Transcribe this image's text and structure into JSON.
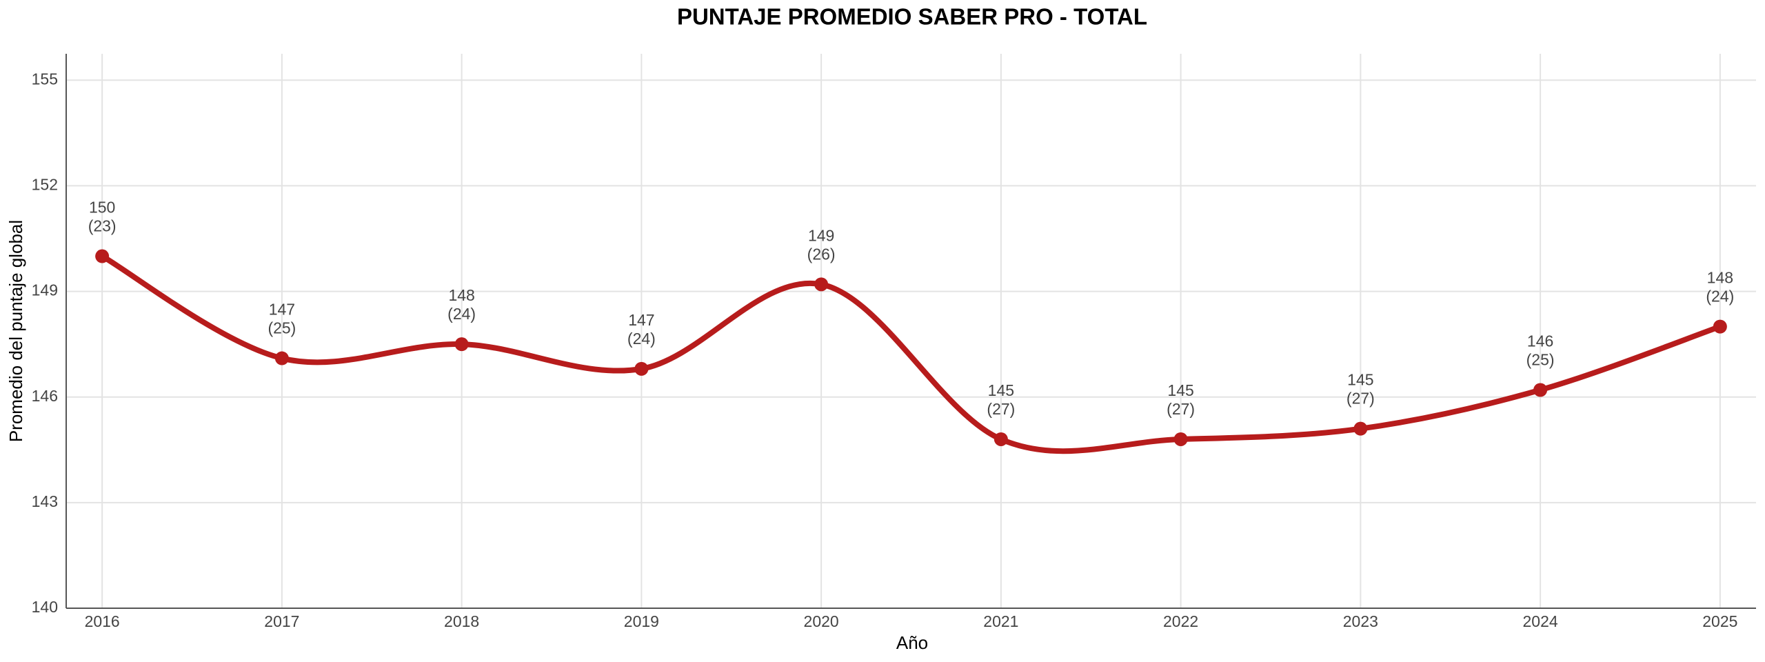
{
  "chart_data": {
    "type": "line",
    "title": "PUNTAJE PROMEDIO SABER PRO - TOTAL",
    "x_label": "Año",
    "y_label": "Promedio del puntaje global",
    "x": [
      2016,
      2017,
      2018,
      2019,
      2020,
      2021,
      2022,
      2023,
      2024,
      2025
    ],
    "series": [
      {
        "color": "#b71c1c",
        "values": [
          150.0,
          147.1,
          147.5,
          146.8,
          149.2,
          144.8,
          144.8,
          145.1,
          146.2,
          148.0
        ],
        "value_labels": [
          "150",
          "147",
          "148",
          "147",
          "149",
          "145",
          "145",
          "145",
          "146",
          "148"
        ],
        "sd_labels": [
          "(23)",
          "(25)",
          "(24)",
          "(24)",
          "(26)",
          "(27)",
          "(27)",
          "(27)",
          "(25)",
          "(24)"
        ]
      }
    ],
    "xlim": [
      2015.8,
      2025.2
    ],
    "xticks": [
      2016,
      2017,
      2018,
      2019,
      2020,
      2021,
      2022,
      2023,
      2024,
      2025
    ],
    "ylim": [
      140,
      155.75
    ],
    "yticks": [
      140,
      143,
      146,
      149,
      152,
      155
    ],
    "grid": true
  }
}
